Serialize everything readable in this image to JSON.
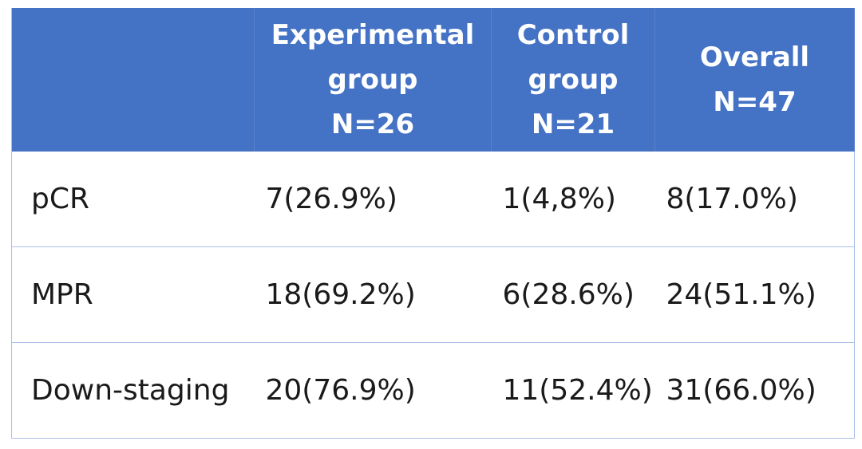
{
  "table": {
    "header": [
      "Experimental\ngroup\nN=26",
      "Control\ngroup\nN=21",
      "Overall\nN=47"
    ],
    "rows": [
      [
        "pCR",
        "7(26.9%)",
        "1(4,8%)",
        "8(17.0%)"
      ],
      [
        "MPR",
        "18(69.2%)",
        "6(28.6%)",
        "24(51.1%)"
      ],
      [
        "Down-staging",
        "20(76.9%)",
        "11(52.4%)",
        "31(66.0%)"
      ]
    ]
  }
}
